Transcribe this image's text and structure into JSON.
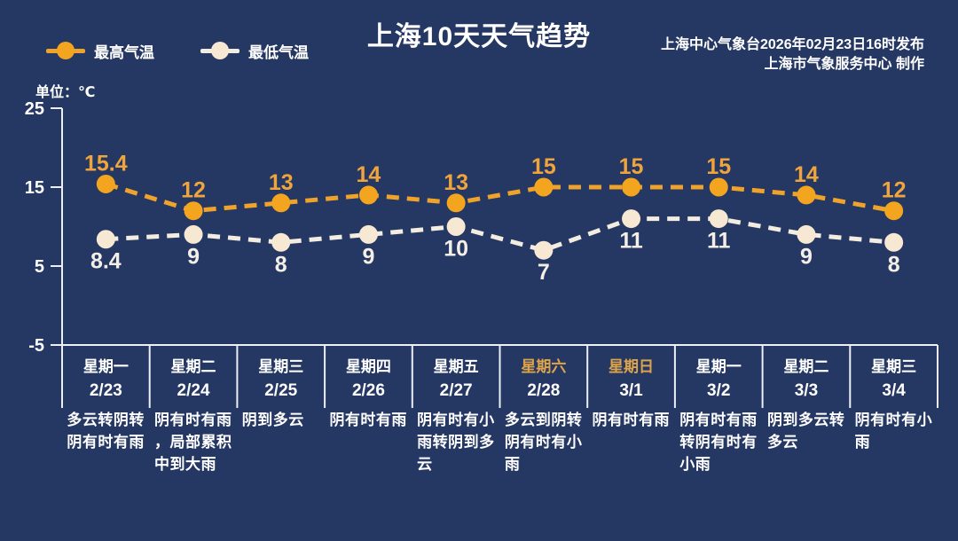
{
  "title": "上海10天天气趋势",
  "publisher": {
    "line1": "上海中心气象台2026年02月23日16时发布",
    "line2": "上海市气象服务中心  制作"
  },
  "legend": {
    "max_label": "最高气温",
    "min_label": "最低气温"
  },
  "unit_label": "单位：℃",
  "colors": {
    "background": "#253763",
    "axis": "#ecf0f6",
    "text": "#ffffff",
    "max_series": "#f0a32b",
    "max_dot": "#f3a51f",
    "max_label_text": "#f0a43c",
    "min_series": "#f2ece1",
    "min_dot": "#f6e8d2",
    "min_label_text": "#f4efe6",
    "weekend_accent": "#dda44a"
  },
  "chart_data": {
    "type": "line",
    "title": "上海10天天气趋势",
    "xlabel": "",
    "ylabel": "单位：℃",
    "ylim": [
      -5,
      25
    ],
    "yticks": [
      25,
      15,
      5,
      -5
    ],
    "grid": false,
    "legend_position": "top-left",
    "line_style": "dashed",
    "categories": [
      "2/23",
      "2/24",
      "2/25",
      "2/26",
      "2/27",
      "2/28",
      "3/1",
      "3/2",
      "3/3",
      "3/4"
    ],
    "series": [
      {
        "name": "最高气温",
        "color": "#f0a32b",
        "values": [
          15.4,
          12,
          13,
          14,
          13,
          15,
          15,
          15,
          14,
          12
        ]
      },
      {
        "name": "最低气温",
        "color": "#f2ece1",
        "values": [
          8.4,
          9,
          8,
          9,
          10,
          7,
          11,
          11,
          9,
          8
        ]
      }
    ]
  },
  "days": [
    {
      "weekday": "星期一",
      "date": "2/23",
      "highlight": false,
      "weather": "多云转阴转\n阴有时有雨"
    },
    {
      "weekday": "星期二",
      "date": "2/24",
      "highlight": false,
      "weather": "阴有时有雨\n，局部累积\n中到大雨"
    },
    {
      "weekday": "星期三",
      "date": "2/25",
      "highlight": false,
      "weather": "阴到多云"
    },
    {
      "weekday": "星期四",
      "date": "2/26",
      "highlight": false,
      "weather": "阴有时有雨"
    },
    {
      "weekday": "星期五",
      "date": "2/27",
      "highlight": false,
      "weather": "阴有时有小\n雨转阴到多\n云"
    },
    {
      "weekday": "星期六",
      "date": "2/28",
      "highlight": true,
      "weather": "多云到阴转\n阴有时有小\n雨"
    },
    {
      "weekday": "星期日",
      "date": "3/1",
      "highlight": true,
      "weather": "阴有时有雨"
    },
    {
      "weekday": "星期一",
      "date": "3/2",
      "highlight": false,
      "weather": "阴有时有雨\n转阴有时有\n小雨"
    },
    {
      "weekday": "星期二",
      "date": "3/3",
      "highlight": false,
      "weather": "阴到多云转\n多云"
    },
    {
      "weekday": "星期三",
      "date": "3/4",
      "highlight": false,
      "weather": "阴有时有小\n雨"
    }
  ]
}
